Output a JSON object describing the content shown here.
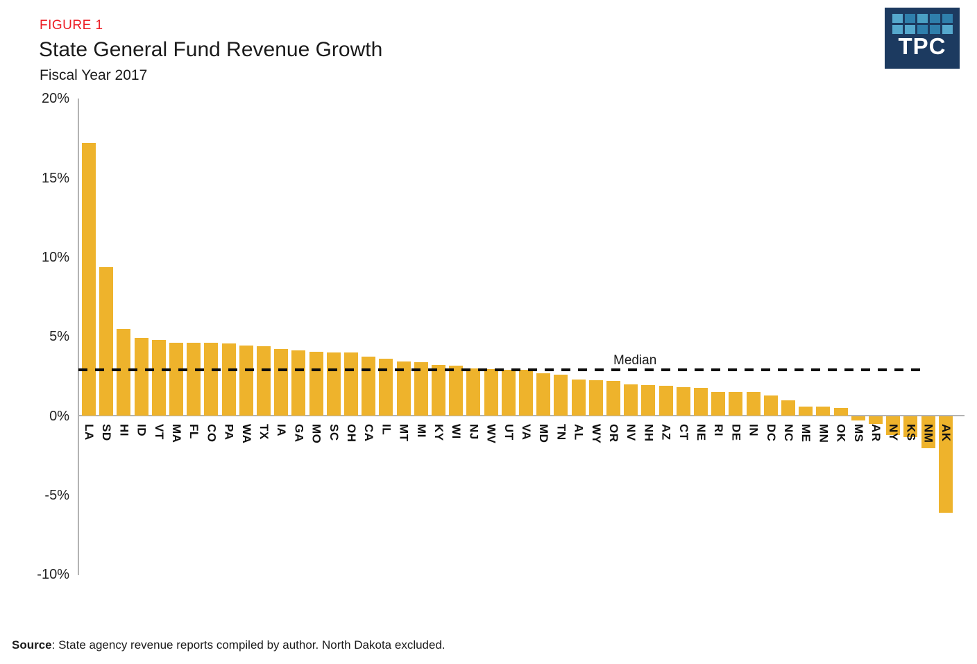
{
  "figure_label": "FIGURE 1",
  "title": "State General Fund Revenue Growth",
  "subtitle": "Fiscal Year 2017",
  "logo": {
    "text": "TPC",
    "bg_color": "#1C3A60",
    "grid": [
      [
        "#55A8CD",
        "#2F7FAC",
        "#4AA0C4",
        "#2F7FAC",
        "#2F7FAC"
      ],
      [
        "#55A8CD",
        "#55A8CD",
        "#2F7FAC",
        "#2F7FAC",
        "#55A8CD"
      ]
    ]
  },
  "chart_data": {
    "type": "bar",
    "title": "State General Fund Revenue Growth",
    "subtitle": "Fiscal Year 2017",
    "bar_color": "#EEB32C",
    "ylim": [
      -10,
      20
    ],
    "grid": false,
    "yticks": [
      {
        "value": 20,
        "label": "20%"
      },
      {
        "value": 15,
        "label": "15%"
      },
      {
        "value": 10,
        "label": "10%"
      },
      {
        "value": 5,
        "label": "5%"
      },
      {
        "value": 0,
        "label": "0%"
      },
      {
        "value": -5,
        "label": "-5%"
      },
      {
        "value": -10,
        "label": "-10%"
      }
    ],
    "categories": [
      "LA",
      "SD",
      "HI",
      "ID",
      "VT",
      "MA",
      "FL",
      "CO",
      "PA",
      "WA",
      "TX",
      "IA",
      "GA",
      "MO",
      "SC",
      "OH",
      "CA",
      "IL",
      "MT",
      "MI",
      "KY",
      "WI",
      "NJ",
      "WV",
      "UT",
      "VA",
      "MD",
      "TN",
      "AL",
      "WY",
      "OR",
      "NV",
      "NH",
      "AZ",
      "CT",
      "NE",
      "RI",
      "DE",
      "IN",
      "DC",
      "NC",
      "ME",
      "MN",
      "OK",
      "MS",
      "AR",
      "NY",
      "KS",
      "NM",
      "AK"
    ],
    "values": [
      17.2,
      9.4,
      5.5,
      4.9,
      4.8,
      4.6,
      4.6,
      4.6,
      4.55,
      4.45,
      4.4,
      4.2,
      4.15,
      4.05,
      4.0,
      4.0,
      3.75,
      3.6,
      3.45,
      3.4,
      3.2,
      3.15,
      3.0,
      2.95,
      2.9,
      2.9,
      2.7,
      2.6,
      2.3,
      2.25,
      2.2,
      2.0,
      1.95,
      1.9,
      1.8,
      1.75,
      1.5,
      1.5,
      1.5,
      1.3,
      1.0,
      0.6,
      0.6,
      0.5,
      -0.3,
      -0.5,
      -1.2,
      -1.35,
      -2.05,
      -6.1
    ],
    "median": {
      "label": "Median",
      "value": 2.9
    }
  },
  "source": {
    "prefix": "Source",
    "text": ": State agency revenue reports compiled by author. North Dakota excluded."
  }
}
